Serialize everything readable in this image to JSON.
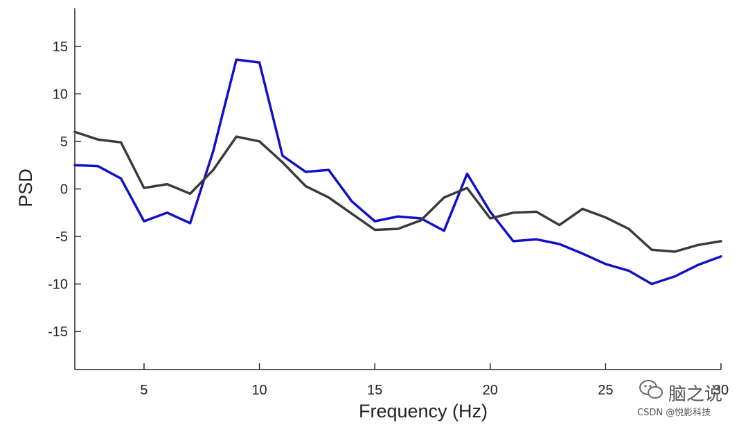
{
  "chart_data": {
    "type": "line",
    "xlabel": "Frequency (Hz)",
    "ylabel": "PSD",
    "xlim": [
      2,
      30
    ],
    "ylim": [
      -19,
      19
    ],
    "xticks": [
      5,
      10,
      15,
      20,
      25,
      30
    ],
    "yticks": [
      -15,
      -10,
      -5,
      0,
      5,
      10,
      15
    ],
    "grid": false,
    "box": "left-bottom",
    "x": [
      2,
      3,
      4,
      5,
      6,
      7,
      8,
      9,
      10,
      11,
      12,
      13,
      14,
      15,
      16,
      17,
      18,
      19,
      20,
      21,
      22,
      23,
      24,
      25,
      26,
      27,
      28,
      29,
      30
    ],
    "series": [
      {
        "color": "#1010c8",
        "values": [
          2.5,
          2.4,
          1.1,
          -3.4,
          -2.5,
          -3.6,
          4.0,
          13.6,
          13.3,
          3.5,
          1.8,
          2.0,
          -1.3,
          -3.4,
          -2.9,
          -3.1,
          -4.4,
          1.6,
          -2.4,
          -5.5,
          -5.3,
          -5.8,
          -6.8,
          -7.9,
          -8.6,
          -10.0,
          -9.2,
          -8.0,
          -7.1
        ]
      },
      {
        "color": "#3a3a3a",
        "values": [
          6.0,
          5.2,
          4.9,
          0.1,
          0.5,
          -0.5,
          2.0,
          5.5,
          5.0,
          2.8,
          0.3,
          -0.9,
          -2.6,
          -4.3,
          -4.2,
          -3.3,
          -0.9,
          0.1,
          -3.1,
          -2.5,
          -2.4,
          -3.8,
          -2.1,
          -3.0,
          -4.2,
          -6.4,
          -6.6,
          -5.9,
          -5.5
        ]
      }
    ]
  },
  "watermark": {
    "icon": "wechat-icon",
    "text": "脑之说",
    "credit": "CSDN @悦影科技"
  }
}
